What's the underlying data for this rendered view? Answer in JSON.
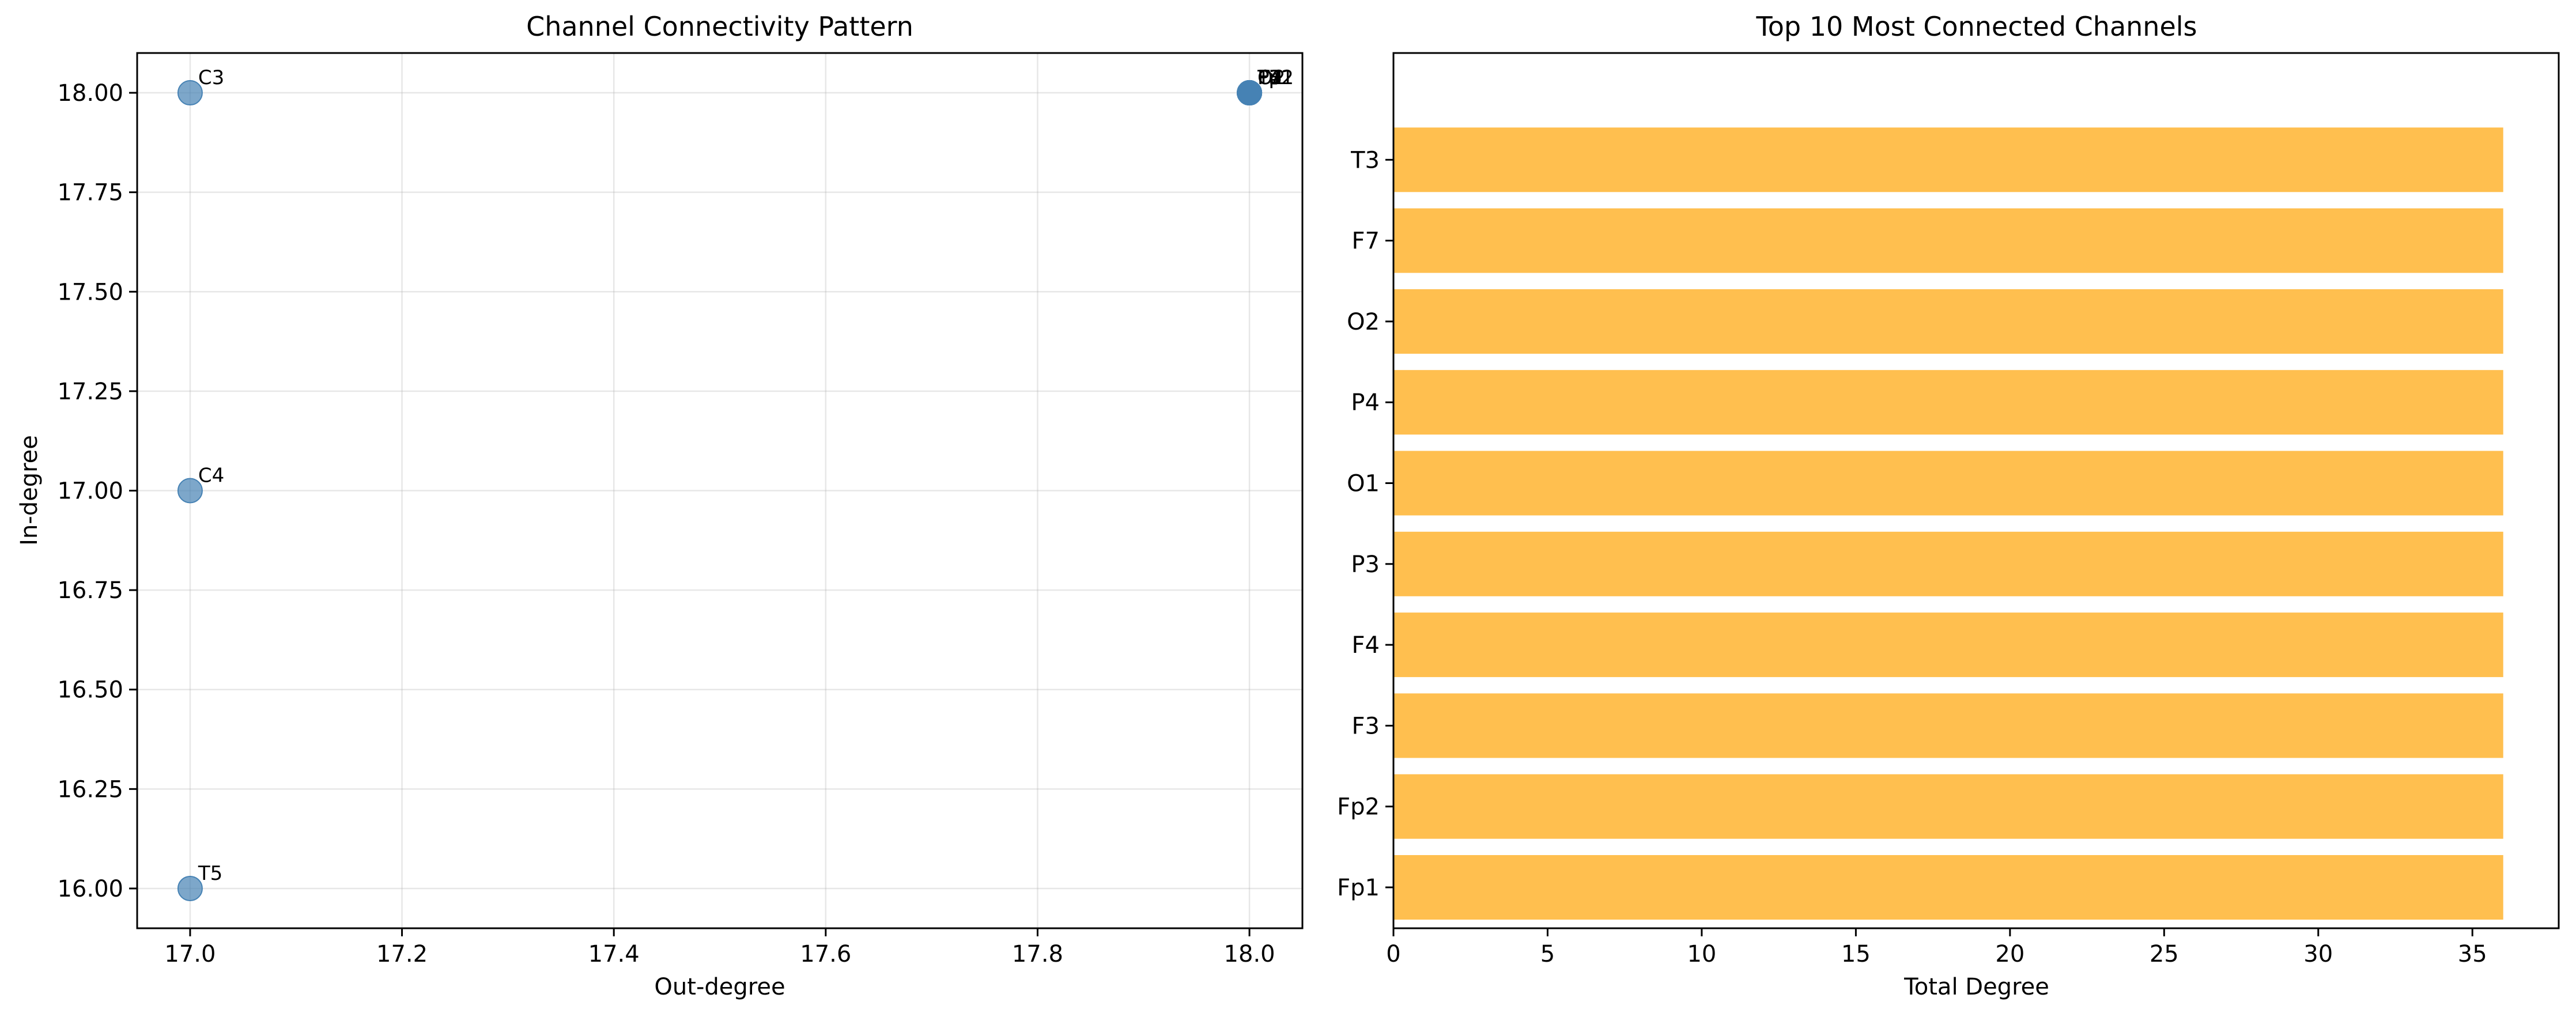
{
  "chart_data": [
    {
      "type": "scatter",
      "title": "Channel Connectivity Pattern",
      "xlabel": "Out-degree",
      "ylabel": "In-degree",
      "xlim": [
        16.95,
        18.05
      ],
      "ylim": [
        15.9,
        18.1
      ],
      "xticks": [
        "17.0",
        "17.2",
        "17.4",
        "17.6",
        "17.8",
        "18.0"
      ],
      "xtick_values": [
        17.0,
        17.2,
        17.4,
        17.6,
        17.8,
        18.0
      ],
      "yticks": [
        "16.00",
        "16.25",
        "16.50",
        "16.75",
        "17.00",
        "17.25",
        "17.50",
        "17.75",
        "18.00"
      ],
      "ytick_values": [
        16.0,
        16.25,
        16.5,
        16.75,
        17.0,
        17.25,
        17.5,
        17.75,
        18.0
      ],
      "grid": true,
      "marker_color": "#4682b4",
      "points": [
        {
          "label": "C3",
          "x": 17,
          "y": 18
        },
        {
          "label": "C4",
          "x": 17,
          "y": 17
        },
        {
          "label": "T5",
          "x": 17,
          "y": 16
        },
        {
          "label": "Fp1",
          "x": 18,
          "y": 18
        },
        {
          "label": "Fp2",
          "x": 18,
          "y": 18
        },
        {
          "label": "F3",
          "x": 18,
          "y": 18
        },
        {
          "label": "F4",
          "x": 18,
          "y": 18
        },
        {
          "label": "P3",
          "x": 18,
          "y": 18
        },
        {
          "label": "O1",
          "x": 18,
          "y": 18
        },
        {
          "label": "P4",
          "x": 18,
          "y": 18
        },
        {
          "label": "O2",
          "x": 18,
          "y": 18
        },
        {
          "label": "F7",
          "x": 18,
          "y": 18
        },
        {
          "label": "T3",
          "x": 18,
          "y": 18
        }
      ]
    },
    {
      "type": "bar",
      "orientation": "horizontal",
      "title": "Top 10 Most Connected Channels",
      "xlabel": "Total Degree",
      "ylabel": "",
      "xlim": [
        0,
        37.8
      ],
      "xticks": [
        "0",
        "5",
        "10",
        "15",
        "20",
        "25",
        "30",
        "35"
      ],
      "xtick_values": [
        0,
        5,
        10,
        15,
        20,
        25,
        30,
        35
      ],
      "bar_color": "#ffbf4f",
      "categories": [
        "Fp1",
        "Fp2",
        "F3",
        "F4",
        "P3",
        "O1",
        "P4",
        "O2",
        "F7",
        "T3"
      ],
      "values": [
        36,
        36,
        36,
        36,
        36,
        36,
        36,
        36,
        36,
        36
      ]
    }
  ]
}
